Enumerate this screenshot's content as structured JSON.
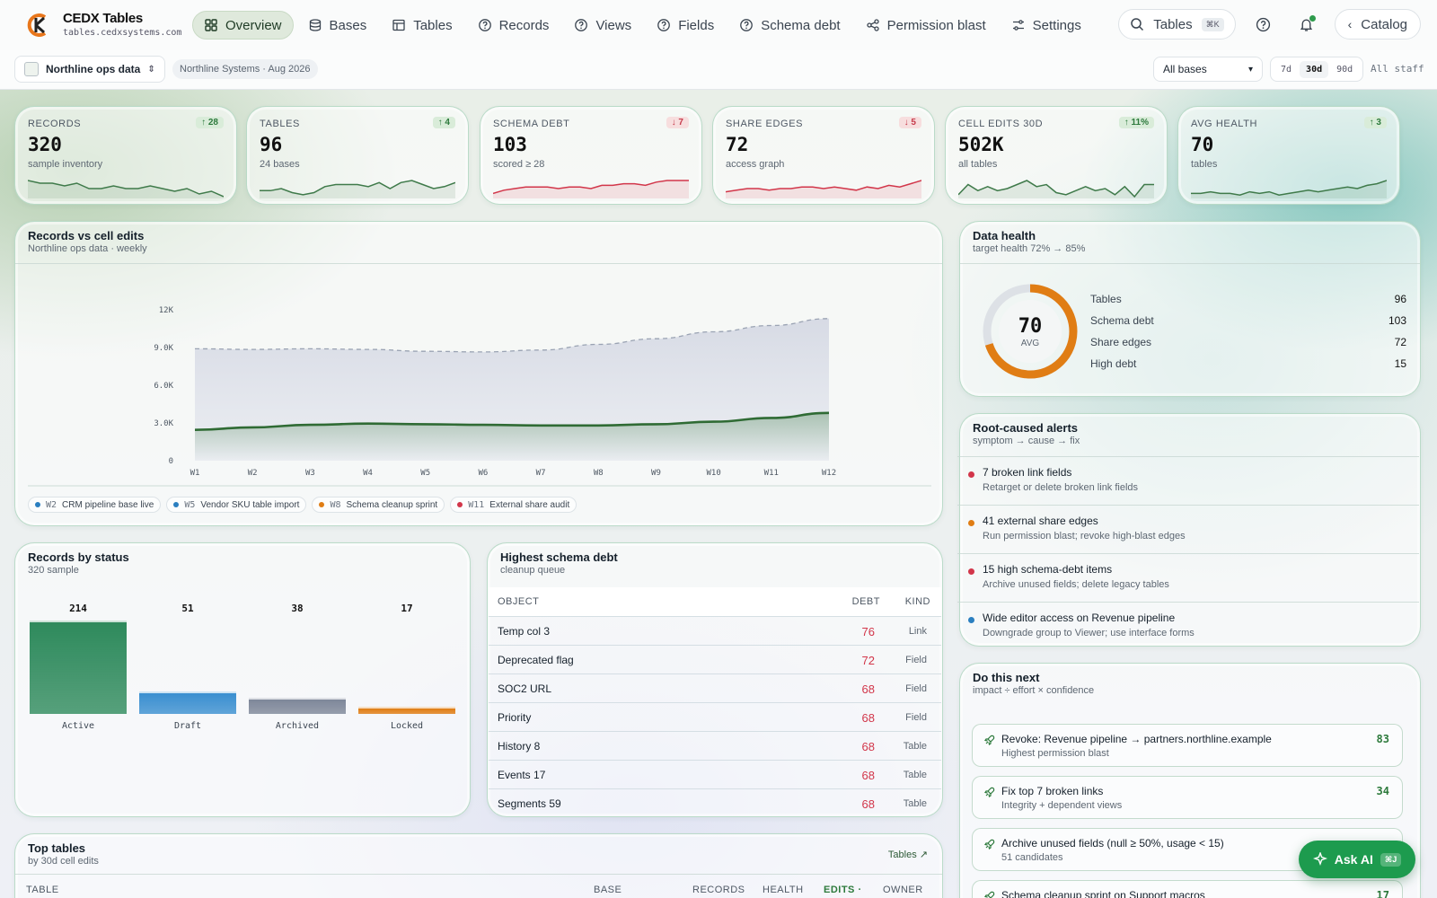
{
  "app": {
    "name": "CEDX Tables",
    "domain": "tables.cedxsystems.com"
  },
  "nav": [
    {
      "label": "Overview",
      "icon": "grid-icon",
      "active": true
    },
    {
      "label": "Bases",
      "icon": "database-icon"
    },
    {
      "label": "Tables",
      "icon": "table-icon"
    },
    {
      "label": "Records",
      "icon": "help-circle-icon"
    },
    {
      "label": "Views",
      "icon": "help-circle-icon"
    },
    {
      "label": "Fields",
      "icon": "help-circle-icon"
    },
    {
      "label": "Schema debt",
      "icon": "help-circle-icon"
    },
    {
      "label": "Permission blast",
      "icon": "share-icon"
    },
    {
      "label": "Settings",
      "icon": "sliders-icon"
    }
  ],
  "topright": {
    "search_label": "Tables",
    "search_kbd": "⌘K",
    "catalog_label": "Catalog"
  },
  "subbar": {
    "workspace": "Northline ops data",
    "org": "Northline Systems · Aug 2026",
    "base_select": "All bases",
    "ranges": [
      "7d",
      "30d",
      "90d"
    ],
    "range_selected": "30d",
    "staff": "All staff"
  },
  "kpis": [
    {
      "label": "Records",
      "value": "320",
      "sub": "sample inventory",
      "delta": "↑ 28",
      "dir": "up",
      "color": "#3f7a4a",
      "spark": [
        6,
        5,
        5,
        4,
        5,
        3,
        3,
        4,
        3,
        3,
        4,
        3,
        2,
        3,
        1,
        2,
        0
      ]
    },
    {
      "label": "Tables",
      "value": "96",
      "sub": "24 bases",
      "delta": "↑ 4",
      "dir": "up",
      "color": "#3f7a4a",
      "spark": [
        3,
        3,
        4,
        2,
        1,
        2,
        5,
        6,
        6,
        6,
        5,
        7,
        4,
        7,
        8,
        6,
        4,
        5,
        7
      ]
    },
    {
      "label": "Schema debt",
      "value": "103",
      "sub": "scored ≥ 28",
      "delta": "↓ 7",
      "dir": "dn",
      "color": "#d2364a",
      "spark": [
        2,
        4,
        5,
        6,
        6,
        6,
        5,
        6,
        6,
        5,
        7,
        7,
        8,
        8,
        7,
        9,
        10,
        10,
        10
      ]
    },
    {
      "label": "Share edges",
      "value": "72",
      "sub": "access graph",
      "delta": "↓ 5",
      "dir": "dn",
      "color": "#d2364a",
      "spark": [
        3,
        4,
        5,
        5,
        4,
        5,
        5,
        6,
        6,
        5,
        6,
        5,
        4,
        6,
        5,
        7,
        6,
        8,
        10
      ]
    },
    {
      "label": "Cell edits 30d",
      "value": "502K",
      "sub": "all tables",
      "delta": "↑ 11%",
      "dir": "up",
      "color": "#3f7a4a",
      "spark": [
        1,
        6,
        3,
        5,
        3,
        4,
        6,
        8,
        5,
        6,
        2,
        1,
        3,
        5,
        3,
        4,
        1,
        5,
        0,
        6,
        6
      ]
    },
    {
      "label": "Avg health",
      "value": "70",
      "sub": "tables",
      "delta": "↑ 3",
      "dir": "up",
      "color": "#3f7a4a",
      "spark": [
        2,
        2,
        3,
        2,
        2,
        1,
        3,
        2,
        3,
        1,
        2,
        3,
        4,
        3,
        4,
        5,
        6,
        5,
        7,
        8,
        10
      ]
    }
  ],
  "chart_data": {
    "type": "area",
    "title": "Records vs cell edits",
    "subtitle": "Northline ops data · weekly",
    "x": [
      "W1",
      "W2",
      "W3",
      "W4",
      "W5",
      "W6",
      "W7",
      "W8",
      "W9",
      "W10",
      "W11",
      "W12"
    ],
    "ylim": [
      0,
      12000
    ],
    "yticks": [
      "0",
      "3.0K",
      "6.0K",
      "9.0K",
      "12K"
    ],
    "series": [
      {
        "name": "Records",
        "color": "#2f6b34",
        "values": [
          2450,
          2650,
          2850,
          2950,
          2900,
          2850,
          2800,
          2800,
          2900,
          3100,
          3400,
          3800
        ]
      },
      {
        "name": "Edits",
        "color": "#9aa3b3",
        "values": [
          8900,
          8850,
          8900,
          8850,
          8700,
          8650,
          8800,
          9250,
          9700,
          10250,
          10750,
          11300
        ]
      }
    ],
    "legend_position": "top-left",
    "grid": false,
    "annotations": [
      {
        "week": "W2",
        "text": "CRM pipeline base live",
        "color": "#2b7fc0"
      },
      {
        "week": "W5",
        "text": "Vendor SKU table import",
        "color": "#2b7fc0"
      },
      {
        "week": "W8",
        "text": "Schema cleanup sprint",
        "color": "#e07d14"
      },
      {
        "week": "W11",
        "text": "External share audit",
        "color": "#d2364a"
      }
    ]
  },
  "health": {
    "title": "Data health",
    "sub": "target health 72% → 85%",
    "score": "70",
    "score_label": "AVG",
    "score_fraction": 0.7,
    "rows": [
      {
        "k": "Tables",
        "v": "96"
      },
      {
        "k": "Schema debt",
        "v": "103"
      },
      {
        "k": "Share edges",
        "v": "72"
      },
      {
        "k": "High debt",
        "v": "15"
      }
    ]
  },
  "alerts": {
    "title": "Root-caused alerts",
    "sub": "symptom → cause → fix",
    "items": [
      {
        "title": "7 broken link fields",
        "desc": "Retarget or delete broken link fields",
        "color": "#d2364a"
      },
      {
        "title": "41 external share edges",
        "desc": "Run permission blast; revoke high-blast edges",
        "color": "#e07d14"
      },
      {
        "title": "15 high schema-debt items",
        "desc": "Archive unused fields; delete legacy tables",
        "color": "#d2364a"
      },
      {
        "title": "Wide editor access on Revenue pipeline",
        "desc": "Downgrade group to Viewer; use interface forms",
        "color": "#2b7fc0"
      }
    ]
  },
  "next": {
    "title": "Do this next",
    "sub": "impact ÷ effort × confidence",
    "items": [
      {
        "title": "Revoke: Revenue pipeline → partners.northline.example",
        "desc": "Highest permission blast",
        "score": "83"
      },
      {
        "title": "Fix top 7 broken links",
        "desc": "Integrity + dependent views",
        "score": "34"
      },
      {
        "title": "Archive unused fields (null ≥ 50%, usage < 15)",
        "desc": "51 candidates",
        "score": ""
      },
      {
        "title": "Schema cleanup sprint on Support macros",
        "desc": "",
        "score": "17"
      }
    ]
  },
  "status": {
    "title": "Records by status",
    "sub": "320 sample",
    "bars": [
      {
        "label": "Active",
        "value": 214,
        "color": "#2e8a5c"
      },
      {
        "label": "Draft",
        "value": 51,
        "color": "#3a8fd0"
      },
      {
        "label": "Archived",
        "value": 38,
        "color": "#7e8799"
      },
      {
        "label": "Locked",
        "value": 17,
        "color": "#e07d14"
      }
    ]
  },
  "debt": {
    "title": "Highest schema debt",
    "sub": "cleanup queue",
    "headers": [
      "OBJECT",
      "DEBT",
      "KIND"
    ],
    "rows": [
      {
        "o": "Temp col 3",
        "v": "76",
        "k": "Link"
      },
      {
        "o": "Deprecated flag",
        "v": "72",
        "k": "Field"
      },
      {
        "o": "SOC2 URL",
        "v": "68",
        "k": "Field"
      },
      {
        "o": "Priority",
        "v": "68",
        "k": "Field"
      },
      {
        "o": "History 8",
        "v": "68",
        "k": "Table"
      },
      {
        "o": "Events 17",
        "v": "68",
        "k": "Table"
      },
      {
        "o": "Segments 59",
        "v": "68",
        "k": "Table"
      }
    ]
  },
  "toptables": {
    "title": "Top tables",
    "sub": "by 30d cell edits",
    "link": "Tables ↗",
    "headers": [
      "TABLE",
      "BASE",
      "RECORDS",
      "HEALTH",
      "EDITS ·",
      "OWNER"
    ]
  },
  "askai": {
    "label": "Ask AI",
    "kbd": "⌘J"
  }
}
